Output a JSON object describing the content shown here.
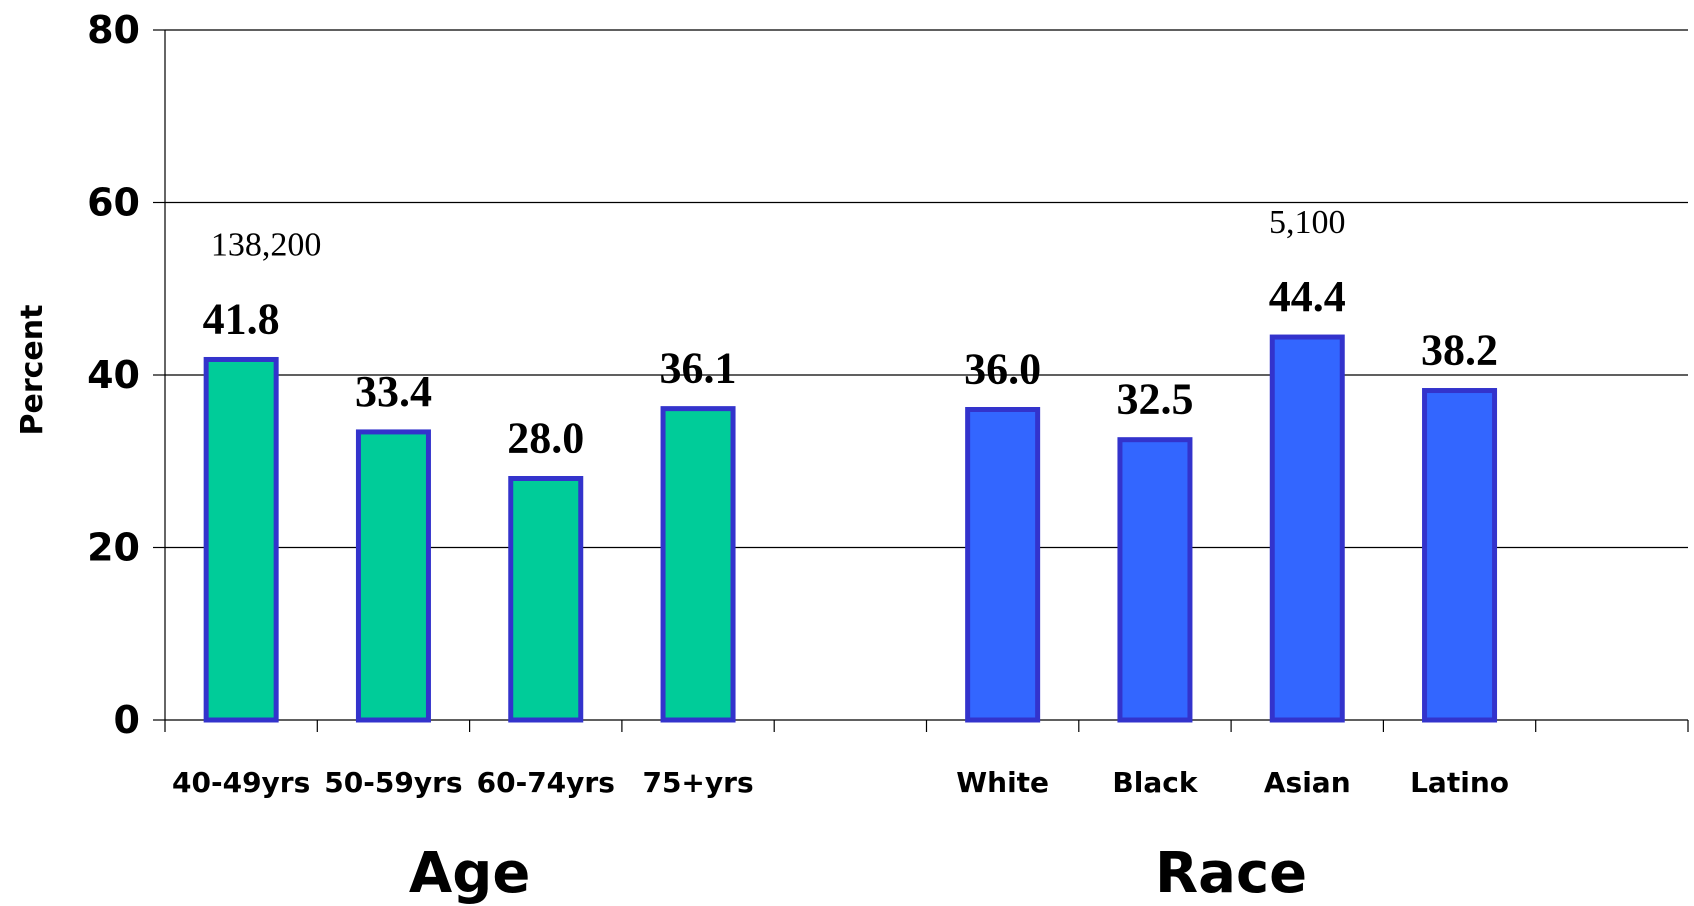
{
  "chart_data": {
    "type": "bar",
    "ylabel": "Percent",
    "ylim": [
      0,
      80
    ],
    "yticks": [
      "0",
      "20",
      "40",
      "60",
      "80"
    ],
    "grid": true,
    "groups": [
      {
        "name": "Age",
        "color": "#00CC99",
        "categories": [
          "40-49yrs",
          "50-59yrs",
          "60-74yrs",
          "75+yrs"
        ],
        "values": [
          41.8,
          33.4,
          28.0,
          36.1
        ],
        "value_labels": [
          "41.8",
          "33.4",
          "28.0",
          "36.1"
        ],
        "notes": [
          "138,200",
          "",
          "",
          ""
        ]
      },
      {
        "name": "Race",
        "color": "#3366FF",
        "categories": [
          "White",
          "Black",
          "Asian",
          "Latino"
        ],
        "values": [
          36.0,
          32.5,
          44.4,
          38.2
        ],
        "value_labels": [
          "36.0",
          "32.5",
          "44.4",
          "38.2"
        ],
        "notes": [
          "",
          "",
          "5,100",
          ""
        ]
      }
    ],
    "bar_border_color": "#3333CC"
  }
}
